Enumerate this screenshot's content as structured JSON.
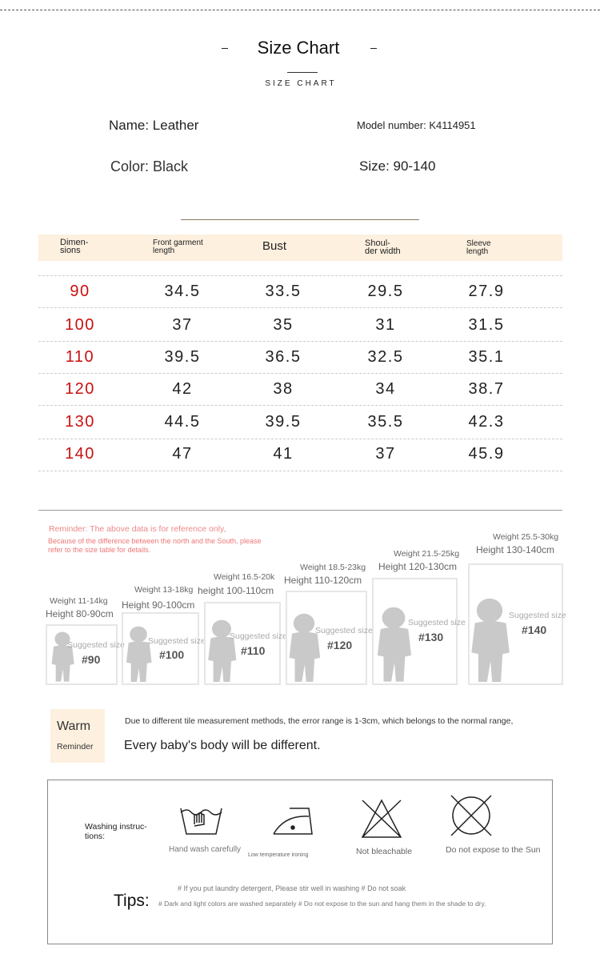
{
  "header": {
    "title": "Size Chart",
    "subtitle": "SIZE CHART"
  },
  "product": {
    "name": "Name: Leather",
    "model": "Model number: K4114951",
    "color": "Color: Black",
    "size": "Size: 90-140"
  },
  "table": {
    "columns": [
      "Dimen-\nsions",
      "Front garment\nlength",
      "Bust",
      "Shoul-\nder width",
      "Sleeve\nlength"
    ],
    "rows": [
      [
        "90",
        "34.5",
        "33.5",
        "29.5",
        "27.9"
      ],
      [
        "100",
        "37",
        "35",
        "31",
        "31.5"
      ],
      [
        "110",
        "39.5",
        "36.5",
        "32.5",
        "35.1"
      ],
      [
        "120",
        "42",
        "38",
        "34",
        "38.7"
      ],
      [
        "130",
        "44.5",
        "39.5",
        "35.5",
        "42.3"
      ],
      [
        "140",
        "47",
        "41",
        "37",
        "45.9"
      ]
    ]
  },
  "reminder": {
    "title": "Reminder: The above data is for reference only,",
    "text": "Because of the difference between the north and the South, please\nrefer to the size table for details."
  },
  "figures": [
    {
      "weight": "Weight 11-14kg",
      "height": "Height 80-90cm",
      "suggested": "Suggested size",
      "size": "#90"
    },
    {
      "weight": "Weight 13-18kg",
      "height": "Height 90-100cm",
      "suggested": "Suggested size",
      "size": "#100"
    },
    {
      "weight": "Weight 16.5-20k",
      "height": "height 100-110cm",
      "suggested": "Suggested size",
      "size": "#110"
    },
    {
      "weight": "Weight 18.5-23kg",
      "height": "Height 110-120cm",
      "suggested": "Suggested size",
      "size": "#120"
    },
    {
      "weight": "Weight 21.5-25kg",
      "height": "Height 120-130cm",
      "suggested": "Suggested size",
      "size": "#130"
    },
    {
      "weight": "Weight 25.5-30kg",
      "height": "Height 130-140cm",
      "suggested": "Suggested size",
      "size": "#140"
    }
  ],
  "warm": {
    "label": "Warm",
    "sublabel": "Reminder",
    "note": "Due to different tile measurement methods, the error range is 1-3cm, which belongs to the normal range,",
    "main": "Every baby's body will be different."
  },
  "care": {
    "label": "Washing instruc-\ntions:",
    "items": [
      "Hand wash carefully",
      "Low temperature ironing",
      "Not bleachable",
      "Do not expose to the Sun"
    ]
  },
  "tips": {
    "label": "Tips:",
    "lines": [
      "# If you put laundry detergent, Please stir well in washing # Do not soak",
      "# Dark and light colors are washed separately # Do not expose to the sun and hang them in the shade to dry."
    ]
  }
}
